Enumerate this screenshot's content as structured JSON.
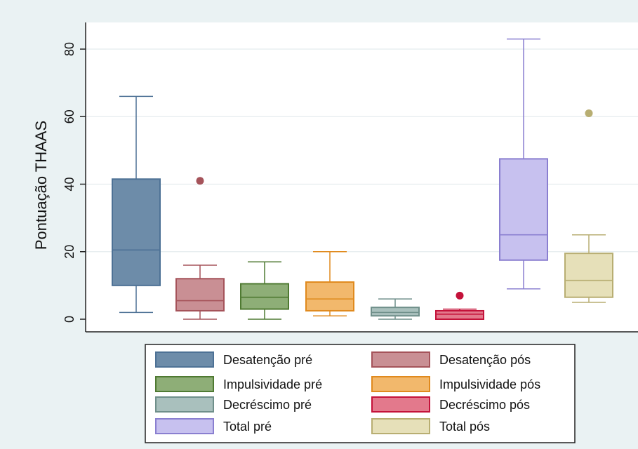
{
  "chart_data": {
    "type": "boxplot",
    "ylabel": "Pontuação THAAS",
    "yticks": [
      0,
      20,
      40,
      60,
      80
    ],
    "ylim": [
      -5,
      88
    ],
    "grid": true,
    "legend_position": "bottom",
    "series": [
      {
        "name": "Desatenção pré",
        "color": "#4d7195",
        "fill": "#6d8ca9",
        "min": 2,
        "q1": 10,
        "median": 20.5,
        "q3": 41.5,
        "max": 66,
        "outliers": []
      },
      {
        "name": "Desatenção pós",
        "color": "#a5535a",
        "fill": "#c98f94",
        "min": 0,
        "q1": 2.5,
        "median": 5.5,
        "q3": 12,
        "max": 16,
        "outliers": [
          41
        ]
      },
      {
        "name": "Impulsividade pré",
        "color": "#4f7a32",
        "fill": "#8eae77",
        "min": 0,
        "q1": 3,
        "median": 6.5,
        "q3": 10.5,
        "max": 17,
        "outliers": []
      },
      {
        "name": "Impulsividade pós",
        "color": "#e08a1e",
        "fill": "#f2b86c",
        "min": 1,
        "q1": 2.5,
        "median": 6,
        "q3": 11,
        "max": 20,
        "outliers": []
      },
      {
        "name": "Decréscimo pré",
        "color": "#6f8f8a",
        "fill": "#a9c0bd",
        "min": 0,
        "q1": 1,
        "median": 2,
        "q3": 3.5,
        "max": 6,
        "outliers": []
      },
      {
        "name": "Decréscimo pós",
        "color": "#c4123a",
        "fill": "#e3798c",
        "min": 0,
        "q1": 0,
        "median": 1.5,
        "q3": 2.5,
        "max": 3,
        "outliers": [
          7
        ]
      },
      {
        "name": "Total pré",
        "color": "#8a7fd0",
        "fill": "#c7c1ef",
        "min": 9,
        "q1": 17.5,
        "median": 25,
        "q3": 47.5,
        "max": 83,
        "outliers": []
      },
      {
        "name": "Total pós",
        "color": "#b8ae72",
        "fill": "#e6e0b9",
        "min": 5,
        "q1": 6.5,
        "median": 11.5,
        "q3": 19.5,
        "max": 25,
        "outliers": [
          61
        ]
      }
    ]
  }
}
